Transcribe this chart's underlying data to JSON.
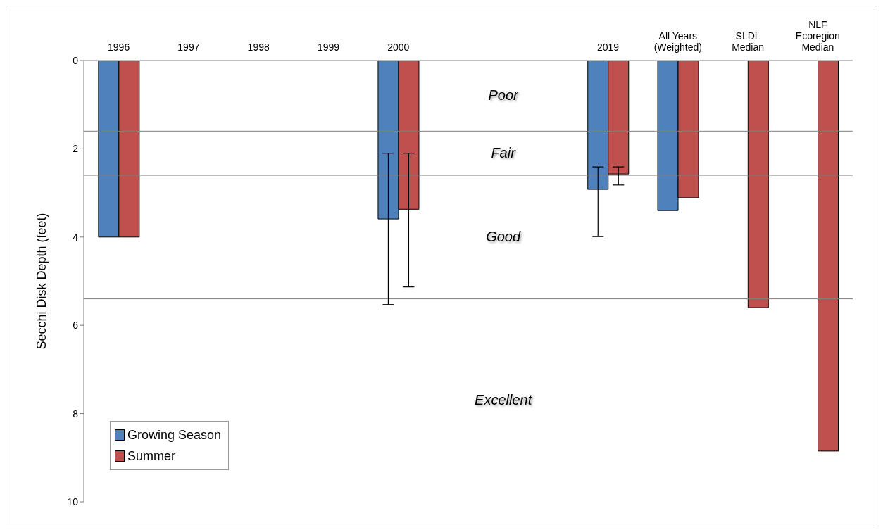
{
  "chart_data": {
    "type": "bar",
    "ylabel": "Secchi Disk Depth (feet)",
    "categories": [
      "1996",
      "1997",
      "1998",
      "1999",
      "2000",
      null,
      null,
      "2019",
      "All Years (Weighted)",
      "SLDL Median",
      "NLF Ecoregion Median"
    ],
    "series": [
      {
        "name": "Growing Season",
        "color": "#4f81bd",
        "values": [
          4.0,
          0,
          0,
          0,
          3.59,
          null,
          null,
          2.92,
          3.4,
          null,
          null
        ],
        "errors": [
          null,
          null,
          null,
          null,
          [
            2.1,
            5.53
          ],
          null,
          null,
          [
            2.41,
            3.99
          ],
          null,
          null,
          null
        ]
      },
      {
        "name": "Summer",
        "color": "#c0504d",
        "values": [
          4.0,
          0,
          0,
          0,
          3.37,
          null,
          null,
          2.57,
          3.11,
          5.6,
          8.85
        ],
        "errors": [
          null,
          null,
          null,
          null,
          [
            2.1,
            5.13
          ],
          null,
          null,
          [
            2.41,
            2.82
          ],
          null,
          null,
          null
        ]
      }
    ],
    "ylim": [
      10,
      0
    ],
    "yticks": [
      0,
      2,
      4,
      6,
      8,
      10
    ],
    "ref_lines": [
      {
        "axis": "y",
        "value": 1.6,
        "color": "#808080"
      },
      {
        "axis": "y",
        "value": 2.6,
        "color": "#808080"
      },
      {
        "axis": "y",
        "value": 5.4,
        "color": "#808080"
      }
    ],
    "annotations": [
      "Poor",
      "Fair",
      "Good",
      "Excellent"
    ],
    "grid": false,
    "legend": "bottom left"
  }
}
